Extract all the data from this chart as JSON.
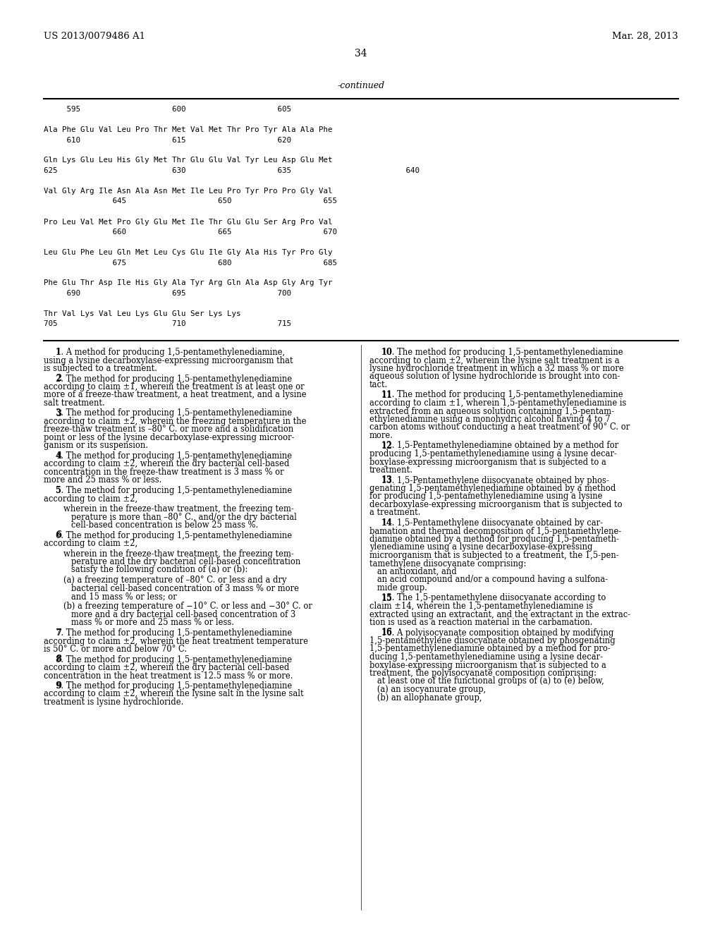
{
  "background_color": "#ffffff",
  "header_left": "US 2013/0079486 A1",
  "header_right": "Mar. 28, 2013",
  "page_number": "34",
  "continued_label": "-continued",
  "seq_lines": [
    "     595                    600                    605",
    "",
    "Ala Phe Glu Val Leu Pro Thr Met Val Met Thr Pro Tyr Ala Ala Phe",
    "     610                    615                    620",
    "",
    "Gln Lys Glu Leu His Gly Met Thr Glu Glu Val Tyr Leu Asp Glu Met",
    "625                         630                    635                         640",
    "",
    "Val Gly Arg Ile Asn Ala Asn Met Ile Leu Pro Tyr Pro Pro Gly Val",
    "               645                    650                    655",
    "",
    "Pro Leu Val Met Pro Gly Glu Met Ile Thr Glu Glu Ser Arg Pro Val",
    "               660                    665                    670",
    "",
    "Leu Glu Phe Leu Gln Met Leu Cys Glu Ile Gly Ala His Tyr Pro Gly",
    "               675                    680                    685",
    "",
    "Phe Glu Thr Asp Ile His Gly Ala Tyr Arg Gln Ala Asp Gly Arg Tyr",
    "     690                    695                    700",
    "",
    "Thr Val Lys Val Leu Lys Glu Glu Ser Lys Lys",
    "705                         710                    715"
  ],
  "left_col_claims": [
    {
      "bold_num": "1",
      "text": ". A method for producing 1,5-pentamethylenediamine,\nusing a lysine decarboxylase-expressing microorganism that\nis subjected to a treatment.",
      "indent": false
    },
    {
      "bold_num": "2",
      "text": ". The method for producing 1,5-pentamethylenediamine\naccording to claim ±1, wherein the treatment is at least one or\nmore of a freeze-thaw treatment, a heat treatment, and a lysine\nsalt treatment.",
      "indent": false
    },
    {
      "bold_num": "3",
      "text": ". The method for producing 1,5-pentamethylenediamine\naccording to claim ±2, wherein the freezing temperature in the\nfreeze-thaw treatment is –80° C. or more and a solidification\npoint or less of the lysine decarboxylase-expressing microor-\nganism or its suspension.",
      "indent": false
    },
    {
      "bold_num": "4",
      "text": ". The method for producing 1,5-pentamethylenediamine\naccording to claim ±2, wherein the dry bacterial cell-based\nconcentration in the freeze-thaw treatment is 3 mass % or\nmore and 25 mass % or less.",
      "indent": false
    },
    {
      "bold_num": "5",
      "text": ". The method for producing 1,5-pentamethylenediamine\naccording to claim ±2,",
      "indent": false
    },
    {
      "bold_num": "",
      "text": "wherein in the freeze-thaw treatment, the freezing tem-\n   perature is more than –80° C., and/or the dry bacterial\n   cell-based concentration is below 25 mass %.",
      "indent": true
    },
    {
      "bold_num": "6",
      "text": ". The method for producing 1,5-pentamethylenediamine\naccording to claim ±2,",
      "indent": false
    },
    {
      "bold_num": "",
      "text": "wherein in the freeze-thaw treatment, the freezing tem-\n   perature and the dry bacterial cell-based concentration\n   satisfy the following condition of (a) or (b):",
      "indent": true
    },
    {
      "bold_num": "",
      "text": "(a) a freezing temperature of –80° C. or less and a dry\n   bacterial cell-based concentration of 3 mass % or more\n   and 15 mass % or less; or",
      "indent": true
    },
    {
      "bold_num": "",
      "text": "(b) a freezing temperature of −10° C. or less and −30° C. or\n   more and a dry bacterial cell-based concentration of 3\n   mass % or more and 25 mass % or less.",
      "indent": true
    },
    {
      "bold_num": "7",
      "text": ". The method for producing 1,5-pentamethylenediamine\naccording to claim ±2, wherein the heat treatment temperature\nis 50° C. or more and below 70° C.",
      "indent": false
    },
    {
      "bold_num": "8",
      "text": ". The method for producing 1,5-pentamethylenediamine\naccording to claim ±2, wherein the dry bacterial cell-based\nconcentration in the heat treatment is 12.5 mass % or more.",
      "indent": false
    },
    {
      "bold_num": "9",
      "text": ". The method for producing 1,5-pentamethylenediamine\naccording to claim ±2, wherein the lysine salt in the lysine salt\ntreatment is lysine hydrochloride.",
      "indent": false
    }
  ],
  "right_col_claims": [
    {
      "bold_num": "10",
      "text": ". The method for producing 1,5-pentamethylenediamine\naccording to claim ±2, wherein the lysine salt treatment is a\nlysine hydrochloride treatment in which a 32 mass % or more\naqueous solution of lysine hydrochloride is brought into con-\ntact.",
      "indent": false
    },
    {
      "bold_num": "11",
      "text": ". The method for producing 1,5-pentamethylenediamine\naccording to claim ±1, wherein 1,5-pentamethylenediamine is\nextracted from an aqueous solution containing 1,5-pentam-\nethylenediamine using a monohydric alcohol having 4 to 7\ncarbon atoms without conducting a heat treatment of 90° C. or\nmore.",
      "indent": false
    },
    {
      "bold_num": "12",
      "text": ". 1,5-Pentamethylenediamine obtained by a method for\nproducing 1,5-pentamethylenediamine using a lysine decar-\nboxylase-expressing microorganism that is subjected to a\ntreatment.",
      "indent": false
    },
    {
      "bold_num": "13",
      "text": ". 1,5-Pentamethylene diisocyanate obtained by phos-\ngenating 1,5-pentamethylenediamine obtained by a method\nfor producing 1,5-pentamethylenediamine using a lysine\ndecarboxylase-expressing microorganism that is subjected to\na treatment.",
      "indent": false
    },
    {
      "bold_num": "14",
      "text": ". 1,5-Pentamethylene diisocyanate obtained by car-\nbamation and thermal decomposition of 1,5-pentamethylene-\ndiamine obtained by a method for producing 1,5-pentameth-\nylenediamine using a lysine decarboxylase-expressing\nmicroorganism that is subjected to a treatment, the 1,5-pen-\ntamethylene diisocyanate comprising:\n   an antioxidant, and\n   an acid compound and/or a compound having a sulfona-\n   mide group.",
      "indent": false
    },
    {
      "bold_num": "15",
      "text": ". The 1,5-pentamethylene diisocyanate according to\nclaim ±14, wherein the 1,5-pentamethylenediamine is\nextracted using an extractant, and the extractant in the extrac-\ntion is used as a reaction material in the carbamation.",
      "indent": false
    },
    {
      "bold_num": "16",
      "text": ". A polyisocyanate composition obtained by modifying\n1,5-pentamethylene diisocyanate obtained by phosgenating\n1,5-pentamethylenediamine obtained by a method for pro-\nducing 1,5-pentamethylenediamine using a lysine decar-\nboxylase-expressing microorganism that is subjected to a\ntreatment, the polyisocyanate composition comprising:\n   at least one of the functional groups of (a) to (e) below,\n   (a) an isocyanurate group,\n   (b) an allophanate group,",
      "indent": false
    }
  ]
}
